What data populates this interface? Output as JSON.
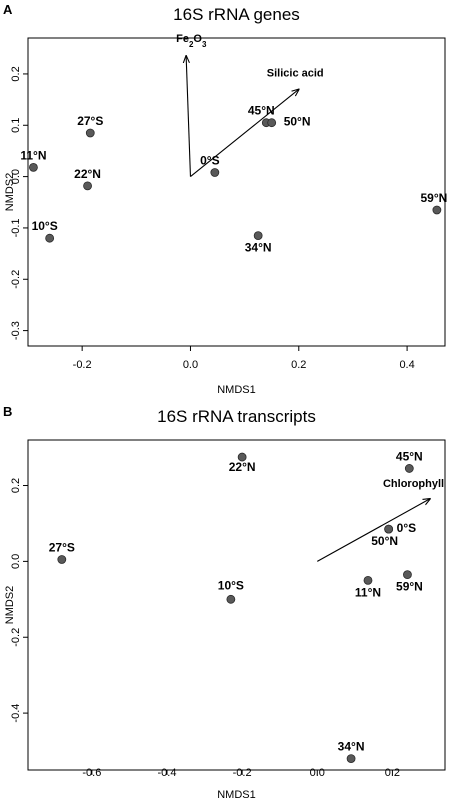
{
  "chart_data": [
    {
      "type": "scatter",
      "panel_label": "A",
      "title": "16S rRNA genes",
      "xlabel": "NMDS1",
      "ylabel": "NMDS2",
      "xlim": [
        -0.3,
        0.47
      ],
      "ylim": [
        -0.33,
        0.27
      ],
      "xticks": [
        -0.2,
        0.0,
        0.2,
        0.4
      ],
      "yticks": [
        -0.3,
        -0.2,
        -0.1,
        0.0,
        0.1,
        0.2
      ],
      "tick_labels_x": [
        "-0.2",
        "0.0",
        "0.2",
        "0.4"
      ],
      "tick_labels_y": [
        "-0.3",
        "-0.2",
        "-0.1",
        "0.0",
        "0.1",
        "0.2"
      ],
      "grid": false,
      "point_color": "#595959",
      "points": [
        {
          "label": "27°S",
          "x": -0.185,
          "y": 0.085
        },
        {
          "label": "11°N",
          "x": -0.29,
          "y": 0.018
        },
        {
          "label": "22°N",
          "x": -0.19,
          "y": -0.018
        },
        {
          "label": "10°S",
          "x": -0.26,
          "y": -0.12
        },
        {
          "label": "0°S",
          "x": 0.045,
          "y": 0.008
        },
        {
          "label": "45°N",
          "x": 0.14,
          "y": 0.105
        },
        {
          "label": "50°N",
          "x": 0.15,
          "y": 0.105
        },
        {
          "label": "34°N",
          "x": 0.125,
          "y": -0.115
        },
        {
          "label": "59°N",
          "x": 0.455,
          "y": -0.065
        }
      ],
      "vectors": [
        {
          "label": "Fe2O3",
          "x": -0.008,
          "y": 0.235
        },
        {
          "label": "Silicic acid",
          "x": 0.2,
          "y": 0.17
        }
      ]
    },
    {
      "type": "scatter",
      "panel_label": "B",
      "title": "16S rRNA transcripts",
      "xlabel": "NMDS1",
      "ylabel": "NMDS2",
      "xlim": [
        -0.77,
        0.34
      ],
      "ylim": [
        -0.55,
        0.32
      ],
      "xticks": [
        -0.6,
        -0.4,
        -0.2,
        0.0,
        0.2
      ],
      "yticks": [
        -0.4,
        -0.2,
        0.0,
        0.2
      ],
      "tick_labels_x": [
        "-0.6",
        "-0.4",
        "-0.2",
        "0.0",
        "0.2"
      ],
      "tick_labels_y": [
        "-0.4",
        "-0.2",
        "0.0",
        "0.2"
      ],
      "grid": false,
      "point_color": "#595959",
      "points": [
        {
          "label": "22°N",
          "x": -0.2,
          "y": 0.275
        },
        {
          "label": "45°N",
          "x": 0.245,
          "y": 0.245
        },
        {
          "label": "27°S",
          "x": -0.68,
          "y": 0.005
        },
        {
          "label": "0°S",
          "x": 0.19,
          "y": 0.085
        },
        {
          "label": "50°N",
          "x": 0.19,
          "y": 0.085
        },
        {
          "label": "10°S",
          "x": -0.23,
          "y": -0.1
        },
        {
          "label": "11°N",
          "x": 0.135,
          "y": -0.05
        },
        {
          "label": "59°N",
          "x": 0.24,
          "y": -0.035
        },
        {
          "label": "34°N",
          "x": 0.09,
          "y": -0.52
        }
      ],
      "vectors": [
        {
          "label": "Chlorophyll",
          "x": 0.3,
          "y": 0.165
        }
      ]
    }
  ]
}
